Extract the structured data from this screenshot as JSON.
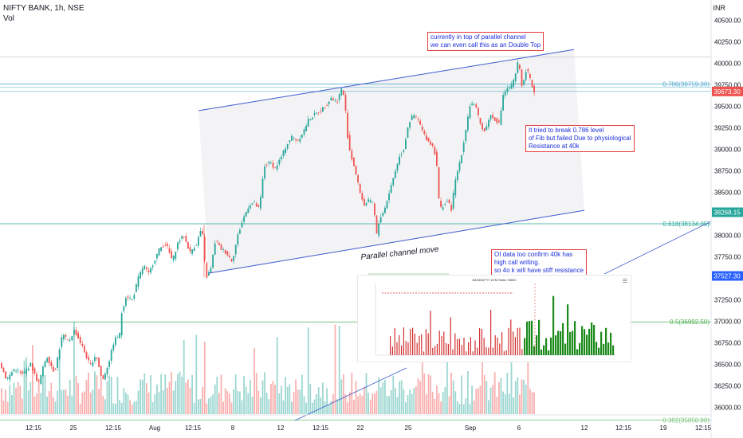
{
  "header": {
    "symbol_line": "NIFTY BANK, 1h, NSE",
    "volume_label": "Vol",
    "currency": "INR"
  },
  "chart_data": {
    "type": "candlestick",
    "x_axis_labels": [
      "12:15",
      "25",
      "12:15",
      "Aug",
      "12:15",
      "8",
      "12",
      "12:15",
      "22",
      "25",
      "Sep",
      "6",
      "12",
      "12:15",
      "19",
      "12:15"
    ],
    "y_axis_labels": [
      "40500.00",
      "40250.00",
      "40000.00",
      "39750.00",
      "39500.00",
      "39250.00",
      "39000.00",
      "38750.00",
      "38500.00",
      "38250.00",
      "38000.00",
      "37750.00",
      "37500.00",
      "37250.00",
      "37000.00",
      "36750.00",
      "36500.00",
      "36250.00",
      "36000.00"
    ],
    "ylim": [
      35920,
      40700
    ],
    "price_tags": [
      {
        "label": "39673.30",
        "value": 39673.3,
        "color": "#ef5350"
      },
      {
        "label": "38268.15",
        "value": 38268.15,
        "color": "#26a69a"
      },
      {
        "label": "37527.30",
        "value": 37527.3,
        "color": "#2962ff"
      }
    ],
    "fib_levels": [
      {
        "label": "0.786(39759.30)",
        "value": 39759.3,
        "color": "#5aaecf"
      },
      {
        "label": "0.618(38134.05)",
        "value": 38134.05,
        "color": "#26a69a"
      },
      {
        "label": "0.5(36992.50)",
        "value": 36992.5,
        "color": "#4caf50"
      },
      {
        "label": "0.382(35850.90)",
        "value": 35850.9,
        "color": "#81c784"
      }
    ],
    "reference_level": 40075,
    "channel": {
      "upper": {
        "from": [
          249,
          39450
        ],
        "to": [
          720,
          40160
        ]
      },
      "lower": {
        "from": [
          262,
          37560
        ],
        "to": [
          733,
          38290
        ]
      }
    },
    "price_path": [
      [
        0,
        36550
      ],
      [
        10,
        36320
      ],
      [
        20,
        36450
      ],
      [
        30,
        36380
      ],
      [
        40,
        36500
      ],
      [
        50,
        36270
      ],
      [
        60,
        36600
      ],
      [
        70,
        36400
      ],
      [
        80,
        36850
      ],
      [
        88,
        36760
      ],
      [
        95,
        36900
      ],
      [
        105,
        36700
      ],
      [
        115,
        36480
      ],
      [
        122,
        36620
      ],
      [
        130,
        36300
      ],
      [
        138,
        36520
      ],
      [
        145,
        36780
      ],
      [
        152,
        36850
      ],
      [
        153,
        37050
      ],
      [
        160,
        37300
      ],
      [
        168,
        37250
      ],
      [
        175,
        37500
      ],
      [
        182,
        37650
      ],
      [
        188,
        37550
      ],
      [
        195,
        37700
      ],
      [
        202,
        37850
      ],
      [
        210,
        37900
      ],
      [
        218,
        37700
      ],
      [
        225,
        37920
      ],
      [
        232,
        38000
      ],
      [
        240,
        37800
      ],
      [
        248,
        37900
      ],
      [
        255,
        38100
      ],
      [
        260,
        37500
      ],
      [
        266,
        37600
      ],
      [
        272,
        37950
      ],
      [
        278,
        37850
      ],
      [
        285,
        37800
      ],
      [
        293,
        37700
      ],
      [
        300,
        38000
      ],
      [
        307,
        38200
      ],
      [
        314,
        38350
      ],
      [
        320,
        38380
      ],
      [
        327,
        38300
      ],
      [
        333,
        38800
      ],
      [
        340,
        38850
      ],
      [
        347,
        38780
      ],
      [
        354,
        38900
      ],
      [
        361,
        39050
      ],
      [
        368,
        39150
      ],
      [
        375,
        39100
      ],
      [
        382,
        39200
      ],
      [
        389,
        39350
      ],
      [
        396,
        39400
      ],
      [
        403,
        39450
      ],
      [
        410,
        39500
      ],
      [
        417,
        39600
      ],
      [
        424,
        39550
      ],
      [
        430,
        39700
      ],
      [
        434,
        39600
      ],
      [
        437,
        39200
      ],
      [
        441,
        38950
      ],
      [
        446,
        38800
      ],
      [
        452,
        38550
      ],
      [
        458,
        38350
      ],
      [
        464,
        38400
      ],
      [
        470,
        38380
      ],
      [
        474,
        38000
      ],
      [
        478,
        38200
      ],
      [
        484,
        38300
      ],
      [
        490,
        38500
      ],
      [
        496,
        38700
      ],
      [
        502,
        38900
      ],
      [
        508,
        39000
      ],
      [
        514,
        39300
      ],
      [
        520,
        39400
      ],
      [
        526,
        39350
      ],
      [
        532,
        39200
      ],
      [
        538,
        39100
      ],
      [
        544,
        39050
      ],
      [
        549,
        38900
      ],
      [
        553,
        38300
      ],
      [
        558,
        38350
      ],
      [
        563,
        38400
      ],
      [
        568,
        38300
      ],
      [
        572,
        38600
      ],
      [
        577,
        38800
      ],
      [
        582,
        39000
      ],
      [
        587,
        39300
      ],
      [
        592,
        39550
      ],
      [
        598,
        39500
      ],
      [
        604,
        39300
      ],
      [
        610,
        39200
      ],
      [
        616,
        39400
      ],
      [
        622,
        39350
      ],
      [
        628,
        39300
      ],
      [
        633,
        39650
      ],
      [
        638,
        39700
      ],
      [
        644,
        39750
      ],
      [
        648,
        39850
      ],
      [
        652,
        40050
      ],
      [
        657,
        39700
      ],
      [
        662,
        39950
      ],
      [
        667,
        39800
      ],
      [
        671,
        39673
      ]
    ]
  },
  "annotations": {
    "double_top": "currently in top of parallel channel\nwe can even call this as an  Double Top",
    "fib_fail": "It tried to break 0.786 level\nof Fib but failed  Due to  physiological\nResistance at 40k",
    "oi_data": "OI data too confirm 40k has\nhigh call writing.\nso 4o k will have stiff resistance",
    "channel_label": "Parallel channel move"
  },
  "inset": {
    "title": "BANKNIFTY ATM Strike 39800"
  }
}
